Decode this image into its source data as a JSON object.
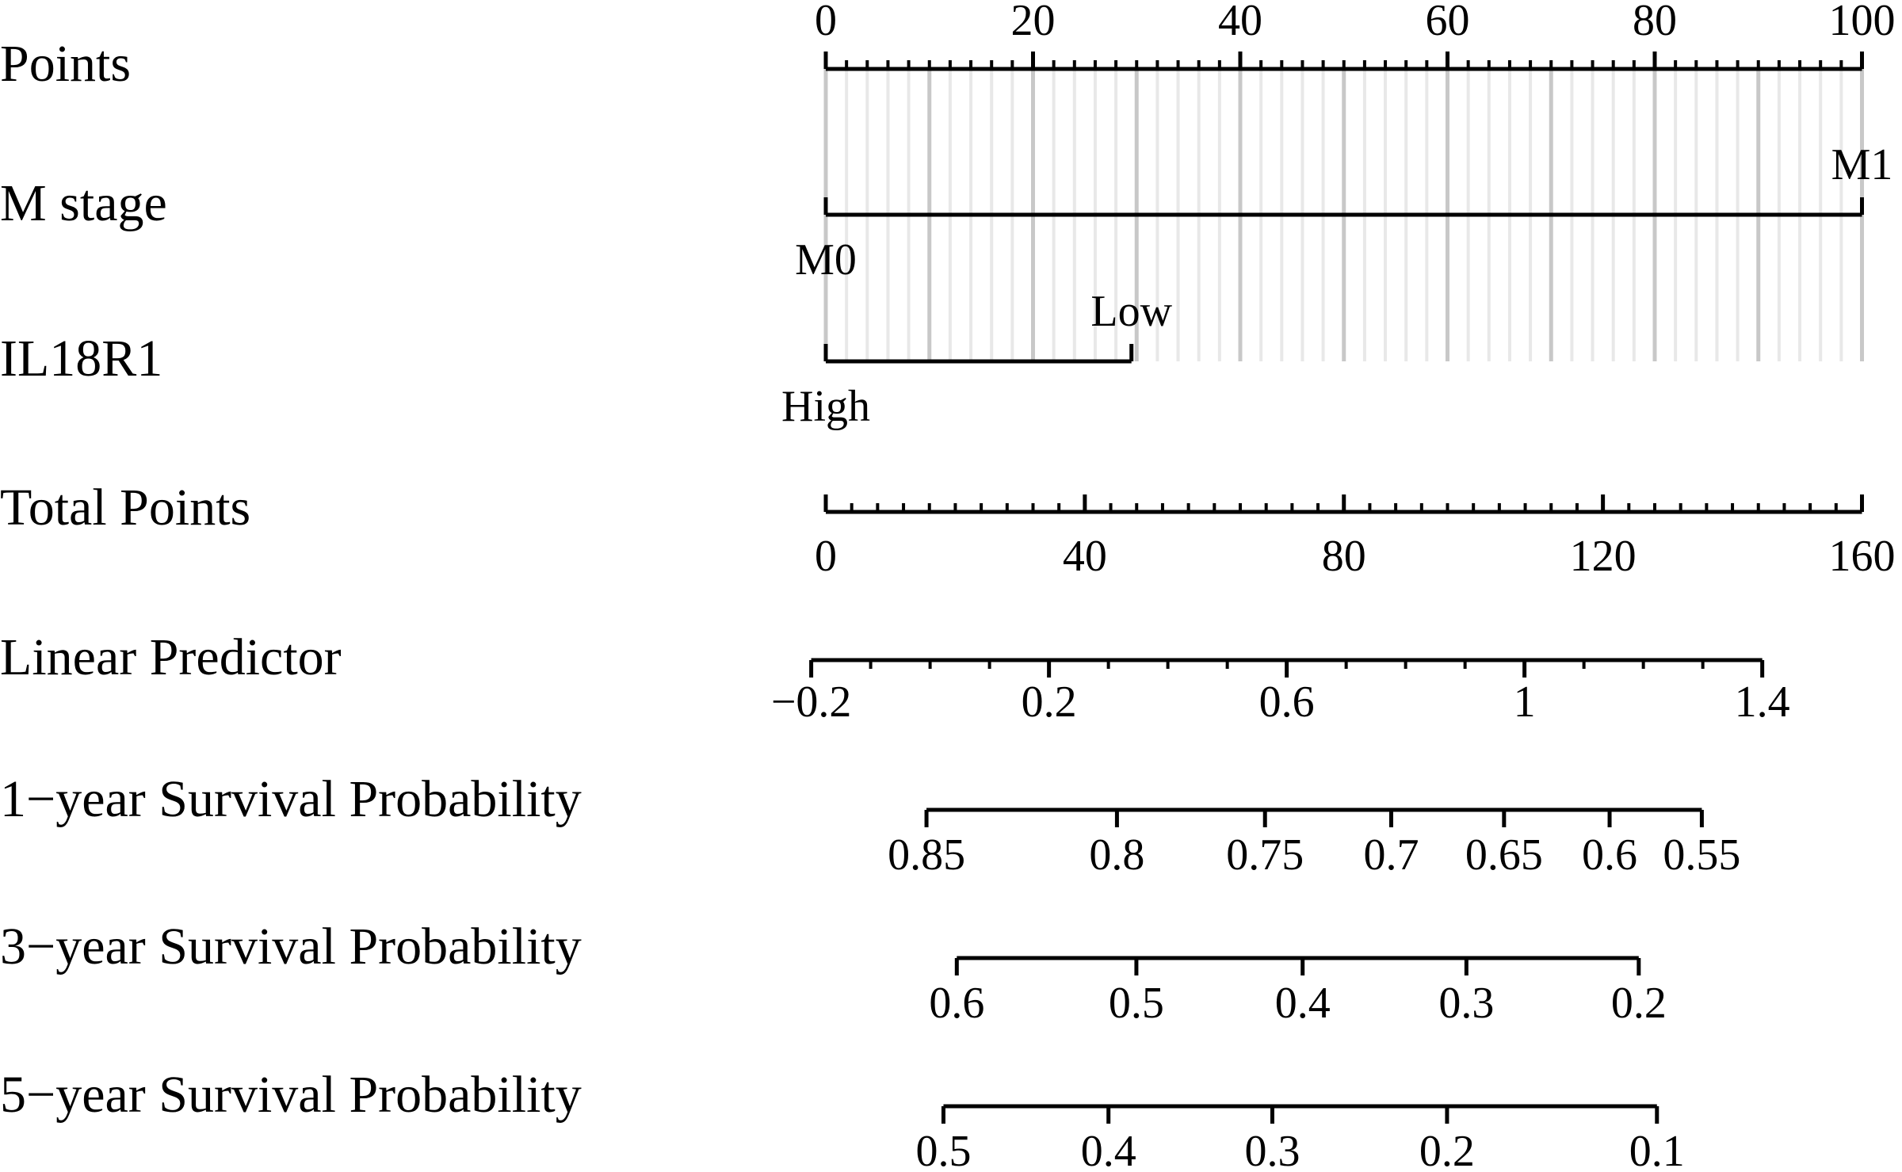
{
  "chart_data": {
    "type": "nomogram",
    "grid": true,
    "rows": [
      {
        "name": "Points",
        "xlim": [
          0,
          100
        ],
        "xticks": [
          0,
          20,
          40,
          60,
          80,
          100
        ],
        "minor_ticks": [
          0,
          2,
          4,
          6,
          8,
          10,
          12,
          14,
          16,
          18,
          20,
          22,
          24,
          26,
          28,
          30,
          32,
          34,
          36,
          38,
          40,
          42,
          44,
          46,
          48,
          50,
          52,
          54,
          56,
          58,
          60,
          62,
          64,
          66,
          68,
          70,
          72,
          74,
          76,
          78,
          80,
          82,
          84,
          86,
          88,
          90,
          92,
          94,
          96,
          98,
          100
        ]
      },
      {
        "name": "M stage",
        "levels": [
          "M0",
          "M1"
        ],
        "points": [
          0,
          100
        ]
      },
      {
        "name": "IL18R1",
        "levels": [
          "High",
          "Low"
        ],
        "points": [
          0,
          29.5
        ]
      },
      {
        "name": "Total Points",
        "xlim": [
          0,
          160
        ],
        "xticks": [
          0,
          40,
          80,
          120,
          160
        ],
        "minor_ticks": [
          0,
          4,
          8,
          12,
          16,
          20,
          24,
          28,
          32,
          36,
          40,
          44,
          48,
          52,
          56,
          60,
          64,
          68,
          72,
          76,
          80,
          84,
          88,
          92,
          96,
          100,
          104,
          108,
          112,
          116,
          120,
          124,
          128,
          132,
          136,
          140,
          144,
          148,
          152,
          156,
          160
        ]
      },
      {
        "name": "Linear Predictor",
        "xlim": [
          -0.2,
          1.4
        ],
        "total_points_lim": [
          -2.25,
          144.6
        ],
        "xticks": [
          {
            "value": -0.2,
            "label": "−0.2"
          },
          0.2,
          0.6,
          1,
          1.4
        ],
        "minor_ticks": [
          -0.2,
          -0.1,
          0,
          0.1,
          0.2,
          0.3,
          0.4,
          0.5,
          0.6,
          0.7,
          0.8,
          0.9,
          1,
          1.1,
          1.2,
          1.3,
          1.4
        ]
      },
      {
        "name": "1−year Survival Probability",
        "xticks": [
          0.85,
          0.8,
          0.75,
          0.7,
          0.65,
          0.6,
          0.55
        ],
        "total_points": [
          15.55,
          44.96,
          67.82,
          87.31,
          104.73,
          121.03,
          135.27
        ]
      },
      {
        "name": "3−year Survival Probability",
        "xticks": [
          0.6,
          0.5,
          0.4,
          0.3,
          0.2
        ],
        "total_points": [
          20.23,
          47.96,
          73.63,
          98.92,
          125.53
        ]
      },
      {
        "name": "5−year Survival Probability",
        "xticks": [
          0.5,
          0.4,
          0.3,
          0.2,
          0.1
        ],
        "total_points": [
          18.17,
          43.65,
          68.95,
          95.93,
          128.34
        ]
      }
    ]
  }
}
